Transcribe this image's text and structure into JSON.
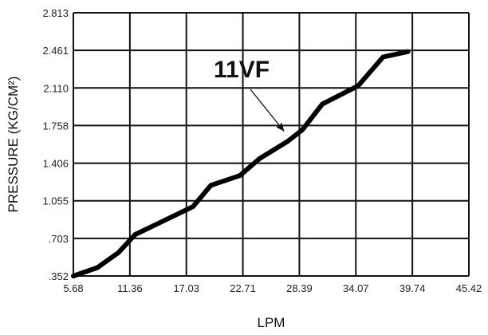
{
  "chart_data": {
    "type": "line",
    "title": "",
    "xlabel": "LPM",
    "ylabel": "PRESSURE (KG/CM²)",
    "x_ticks": [
      "5.68",
      "11.36",
      "17.03",
      "22.71",
      "28.39",
      "34.07",
      "39.74",
      "45.42"
    ],
    "y_ticks": [
      ".352",
      ".703",
      "1.055",
      "1.406",
      "1.758",
      "2.110",
      "2.461",
      "2.813"
    ],
    "xlim": [
      5.68,
      45.42
    ],
    "ylim": [
      0.352,
      2.813
    ],
    "grid": true,
    "series": [
      {
        "name": "",
        "x": [
          5.68,
          8.1,
          10.2,
          11.9,
          13.9,
          17.7,
          19.5,
          22.4,
          24.4,
          27.2,
          28.7,
          30.7,
          34.3,
          36.8,
          39.3
        ],
        "y": [
          0.352,
          0.43,
          0.57,
          0.74,
          0.83,
          1.0,
          1.2,
          1.29,
          1.45,
          1.61,
          1.72,
          1.96,
          2.13,
          2.4,
          2.45
        ]
      }
    ],
    "annotations": [
      {
        "text": "11VF",
        "points_to": [
          27.5,
          1.63
        ]
      }
    ]
  }
}
